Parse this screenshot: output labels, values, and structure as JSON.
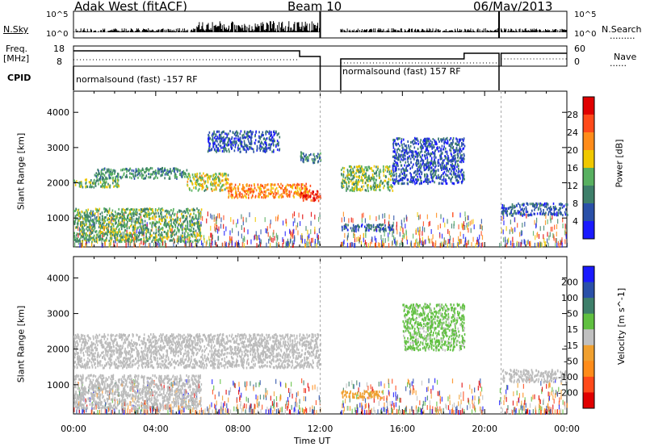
{
  "header": {
    "station": "Adak West (fitACF)",
    "beam": "Beam 10",
    "date": "06/May/2013"
  },
  "noise_panel": {
    "left_label": "N.Sky",
    "left_ticks": [
      "10^5",
      "10^0"
    ],
    "right_ticks": [
      "10^5",
      "10^0"
    ],
    "right_label": "N.Search",
    "right_legend": "........."
  },
  "freq_panel": {
    "left_label_1": "Freq.",
    "left_label_2": "[MHz]",
    "left_ticks": [
      "18",
      "8"
    ],
    "right_ticks": [
      "60",
      "0"
    ],
    "right_label": "Nave",
    "right_legend": "......"
  },
  "cpid": {
    "label": "CPID",
    "segments": [
      "normalsound (fast) -157 RF",
      "normalsound (fast) 157 RF"
    ]
  },
  "time_axis": {
    "ticks": [
      "00:00",
      "04:00",
      "08:00",
      "12:00",
      "16:00",
      "20:00",
      "00:00"
    ],
    "label": "Time UT"
  },
  "colors": {
    "power": [
      "#1a1aff",
      "#2a50a8",
      "#3e7f6a",
      "#58b060",
      "#f0c800",
      "#ff8c1a",
      "#ff4a1a",
      "#e00000"
    ],
    "velocity": [
      "#e00000",
      "#ff4a1a",
      "#ff8c1a",
      "#f0a030",
      "#c0c0c0",
      "#60c040",
      "#3e7f6a",
      "#2a50a8",
      "#1a1aff"
    ],
    "ground_scatter": "#bbbbbb"
  },
  "chart_data": [
    {
      "type": "heatmap",
      "name": "power",
      "xlabel": "",
      "ylabel": "Slant Range [km]",
      "ylim": [
        180,
        4600
      ],
      "yticks": [
        "1000",
        "2000",
        "3000",
        "4000"
      ],
      "xlim": [
        0,
        24
      ],
      "colorbar": {
        "label": "Power [dB]",
        "range": [
          0,
          32
        ],
        "ticks": [
          "28",
          "24",
          "20",
          "16",
          "12",
          "8",
          "4"
        ]
      },
      "features": [
        {
          "t": [
            0.0,
            2.2
          ],
          "range": [
            1900,
            2150
          ],
          "value": 14
        },
        {
          "t": [
            1.0,
            5.5
          ],
          "range": [
            2150,
            2450
          ],
          "value": 11
        },
        {
          "t": [
            5.5,
            7.5
          ],
          "range": [
            1800,
            2300
          ],
          "value": 16
        },
        {
          "t": [
            7.5,
            11.5
          ],
          "range": [
            1600,
            2000
          ],
          "value": 22
        },
        {
          "t": [
            11.0,
            12.0
          ],
          "range": [
            1500,
            1800
          ],
          "value": 28
        },
        {
          "t": [
            11.0,
            12.0
          ],
          "range": [
            2600,
            2900
          ],
          "value": 10
        },
        {
          "t": [
            0.0,
            6.2
          ],
          "range": [
            350,
            1300
          ],
          "value": 13
        },
        {
          "t": [
            6.5,
            10.0
          ],
          "range": [
            2900,
            3500
          ],
          "value": 6
        },
        {
          "t": [
            13.0,
            15.5
          ],
          "range": [
            1800,
            2500
          ],
          "value": 14
        },
        {
          "t": [
            15.5,
            19.0
          ],
          "range": [
            2000,
            3300
          ],
          "value": 6
        },
        {
          "t": [
            13.0,
            15.5
          ],
          "range": [
            650,
            850
          ],
          "value": 7
        },
        {
          "t": [
            20.8,
            24.0
          ],
          "range": [
            1100,
            1450
          ],
          "value": 7
        }
      ]
    },
    {
      "type": "heatmap",
      "name": "velocity",
      "xlabel": "Time UT",
      "ylabel": "Slant Range [km]",
      "ylim": [
        180,
        4600
      ],
      "yticks": [
        "1000",
        "2000",
        "3000",
        "4000"
      ],
      "xlim": [
        0,
        24
      ],
      "colorbar": {
        "label": "Velocity [m s^-1]",
        "range": [
          -250,
          250
        ],
        "ticks": [
          "200",
          "100",
          "50",
          "15",
          "-15",
          "-50",
          "-100",
          "-200"
        ]
      },
      "features": [
        {
          "t": [
            0.0,
            12.0
          ],
          "range": [
            1500,
            2450
          ],
          "value": "ground scatter"
        },
        {
          "t": [
            0.0,
            6.2
          ],
          "range": [
            350,
            1300
          ],
          "value": "ground scatter"
        },
        {
          "t": [
            13.0,
            15.0
          ],
          "range": [
            650,
            850
          ],
          "value": -60
        },
        {
          "t": [
            16.0,
            19.0
          ],
          "range": [
            2000,
            3300
          ],
          "value": 40
        },
        {
          "t": [
            20.8,
            24.0
          ],
          "range": [
            1100,
            1450
          ],
          "value": "ground scatter"
        }
      ]
    }
  ]
}
